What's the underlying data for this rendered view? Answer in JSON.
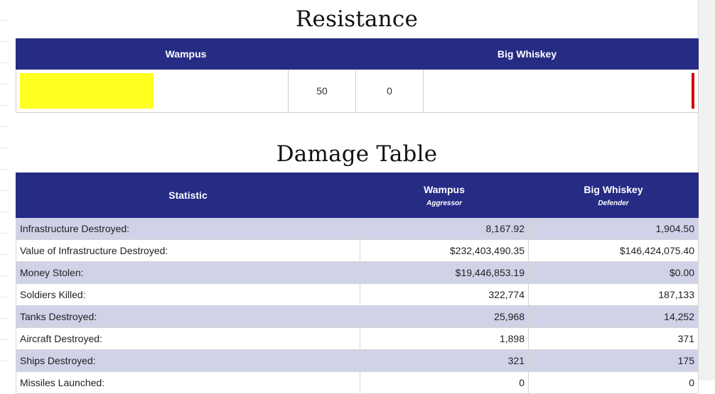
{
  "resistance": {
    "title": "Resistance",
    "left_name": "Wampus",
    "right_name": "Big Whiskey",
    "left_value": "50",
    "right_value": "0",
    "left_bar_color": "#ffff20",
    "right_bar_color": "#d40000"
  },
  "damage": {
    "title": "Damage Table",
    "headers": {
      "statistic": "Statistic",
      "aggressor_name": "Wampus",
      "aggressor_role": "Aggressor",
      "defender_name": "Big Whiskey",
      "defender_role": "Defender"
    },
    "rows": [
      {
        "label": "Infrastructure Destroyed:",
        "aggressor": "8,167.92",
        "defender": "1,904.50"
      },
      {
        "label": "Value of Infrastructure Destroyed:",
        "aggressor": "$232,403,490.35",
        "defender": "$146,424,075.40"
      },
      {
        "label": "Money Stolen:",
        "aggressor": "$19,446,853.19",
        "defender": "$0.00"
      },
      {
        "label": "Soldiers Killed:",
        "aggressor": "322,774",
        "defender": "187,133"
      },
      {
        "label": "Tanks Destroyed:",
        "aggressor": "25,968",
        "defender": "14,252"
      },
      {
        "label": "Aircraft Destroyed:",
        "aggressor": "1,898",
        "defender": "371"
      },
      {
        "label": "Ships Destroyed:",
        "aggressor": "321",
        "defender": "175"
      },
      {
        "label": "Missiles Launched:",
        "aggressor": "0",
        "defender": "0"
      }
    ],
    "header_color": "#262b84",
    "stripe_color": "#d0d3e8"
  }
}
